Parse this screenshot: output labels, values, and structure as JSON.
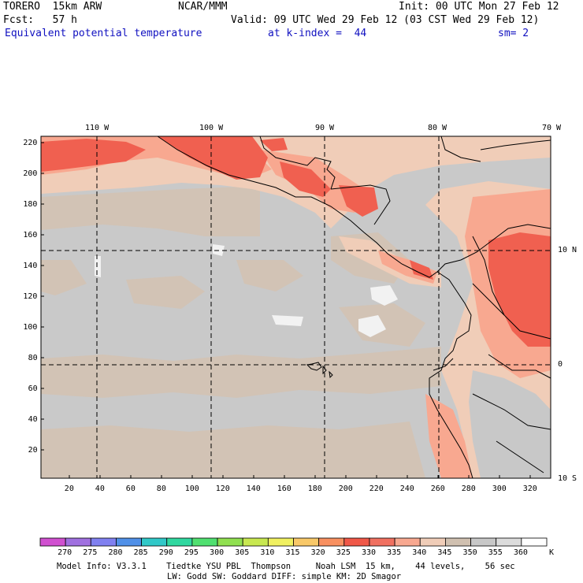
{
  "header": {
    "model": "TORERO  15km ARW",
    "center": "NCAR/MMM",
    "init": "Init: 00 UTC Mon 27 Feb 12",
    "fcst": "Fcst:   57 h",
    "valid": "Valid: 09 UTC Wed 29 Feb 12 (03 CST Wed 29 Feb 12)",
    "field": "Equivalent potential temperature",
    "level": "at k-index =  44",
    "smooth": "sm= 2"
  },
  "axes": {
    "lon_labels": [
      "110 W",
      "100 W",
      "90 W",
      "80 W",
      "70 W"
    ],
    "lat_labels": [
      "10 N",
      "0",
      "10 S"
    ],
    "x_ticks": [
      "20",
      "40",
      "60",
      "80",
      "100",
      "120",
      "140",
      "160",
      "180",
      "200",
      "220",
      "240",
      "260",
      "280",
      "300",
      "320"
    ],
    "y_ticks": [
      "220",
      "200",
      "180",
      "160",
      "140",
      "120",
      "100",
      "80",
      "60",
      "40",
      "20"
    ]
  },
  "colorbar": {
    "unit": "K",
    "labels": [
      "270",
      "275",
      "280",
      "285",
      "290",
      "295",
      "300",
      "305",
      "310",
      "315",
      "320",
      "325",
      "330",
      "335",
      "340",
      "345",
      "350",
      "355",
      "360"
    ],
    "colors": [
      "#d050d0",
      "#a070e0",
      "#8080f0",
      "#5090e8",
      "#30c8c8",
      "#30d8a0",
      "#50e070",
      "#90e050",
      "#c8e850",
      "#f0f060",
      "#f8c868",
      "#f89060",
      "#f05848",
      "#f07060",
      "#f8a890",
      "#f0cdb8",
      "#d0c0b0",
      "#c8c8c8",
      "#dcdcdc",
      "#ffffff"
    ]
  },
  "footer": {
    "line1": "Model Info: V3.3.1    Tiedtke YSU PBL  Thompson     Noah LSM  15 km,    44 levels,    56 sec",
    "line2": "LW: Godd SW: Goddard DIFF: simple KM: 2D Smagor"
  }
}
